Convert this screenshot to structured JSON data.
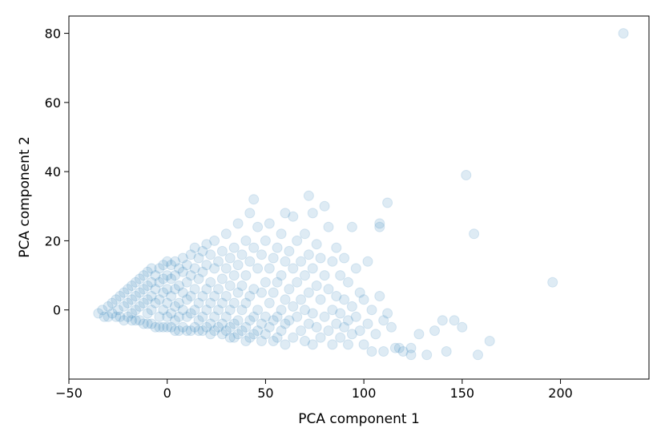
{
  "chart_data": {
    "type": "scatter",
    "title": "",
    "xlabel": "PCA component 1",
    "ylabel": "PCA component 2",
    "xlim": [
      -50,
      245
    ],
    "ylim": [
      -20,
      85
    ],
    "xticks": [
      -50,
      0,
      50,
      100,
      150,
      200
    ],
    "xtick_labels": [
      "−50",
      "0",
      "50",
      "100",
      "150",
      "200"
    ],
    "yticks": [
      0,
      20,
      40,
      60,
      80
    ],
    "ytick_labels": [
      "0",
      "20",
      "40",
      "60",
      "80"
    ],
    "grid": false,
    "legend": "none",
    "marker_color": "#1f77b4",
    "marker_alpha": 0.15,
    "series": [
      {
        "points": [
          [
            -35,
            -1
          ],
          [
            -33,
            0
          ],
          [
            -32,
            -2
          ],
          [
            -30,
            1
          ],
          [
            -30,
            -2
          ],
          [
            -28,
            2
          ],
          [
            -28,
            -1
          ],
          [
            -26,
            3
          ],
          [
            -26,
            -2
          ],
          [
            -25,
            0
          ],
          [
            -24,
            4
          ],
          [
            -24,
            -2
          ],
          [
            -22,
            5
          ],
          [
            -22,
            1
          ],
          [
            -22,
            -3
          ],
          [
            -20,
            6
          ],
          [
            -20,
            2
          ],
          [
            -20,
            -2
          ],
          [
            -18,
            7
          ],
          [
            -18,
            3
          ],
          [
            -18,
            -1
          ],
          [
            -18,
            -3
          ],
          [
            -16,
            8
          ],
          [
            -16,
            4
          ],
          [
            -16,
            0
          ],
          [
            -16,
            -3
          ],
          [
            -14,
            9
          ],
          [
            -14,
            5
          ],
          [
            -14,
            1
          ],
          [
            -14,
            -3
          ],
          [
            -12,
            10
          ],
          [
            -12,
            6
          ],
          [
            -12,
            2
          ],
          [
            -12,
            -4
          ],
          [
            -10,
            11
          ],
          [
            -10,
            7
          ],
          [
            -10,
            3
          ],
          [
            -10,
            -1
          ],
          [
            -10,
            -4
          ],
          [
            -8,
            12
          ],
          [
            -8,
            8
          ],
          [
            -8,
            4
          ],
          [
            -8,
            0
          ],
          [
            -8,
            -4
          ],
          [
            -6,
            10
          ],
          [
            -6,
            6
          ],
          [
            -6,
            2
          ],
          [
            -6,
            -5
          ],
          [
            -4,
            12
          ],
          [
            -4,
            8
          ],
          [
            -4,
            3
          ],
          [
            -4,
            -2
          ],
          [
            -4,
            -5
          ],
          [
            -2,
            13
          ],
          [
            -2,
            9
          ],
          [
            -2,
            5
          ],
          [
            -2,
            0
          ],
          [
            -2,
            -5
          ],
          [
            0,
            14
          ],
          [
            0,
            10
          ],
          [
            0,
            6
          ],
          [
            0,
            2
          ],
          [
            0,
            -2
          ],
          [
            0,
            -5
          ],
          [
            2,
            13
          ],
          [
            2,
            9
          ],
          [
            2,
            4
          ],
          [
            2,
            -1
          ],
          [
            2,
            -5
          ],
          [
            4,
            14
          ],
          [
            4,
            10
          ],
          [
            4,
            6
          ],
          [
            4,
            1
          ],
          [
            4,
            -3
          ],
          [
            4,
            -6
          ],
          [
            6,
            12
          ],
          [
            6,
            7
          ],
          [
            6,
            2
          ],
          [
            6,
            -2
          ],
          [
            6,
            -6
          ],
          [
            8,
            15
          ],
          [
            8,
            11
          ],
          [
            8,
            5
          ],
          [
            8,
            0
          ],
          [
            8,
            -5
          ],
          [
            10,
            13
          ],
          [
            10,
            8
          ],
          [
            10,
            3
          ],
          [
            10,
            -2
          ],
          [
            10,
            -6
          ],
          [
            12,
            16
          ],
          [
            12,
            10
          ],
          [
            12,
            4
          ],
          [
            12,
            -1
          ],
          [
            12,
            -6
          ],
          [
            14,
            18
          ],
          [
            14,
            12
          ],
          [
            14,
            6
          ],
          [
            14,
            0
          ],
          [
            14,
            -5
          ],
          [
            16,
            15
          ],
          [
            16,
            9
          ],
          [
            16,
            2
          ],
          [
            16,
            -3
          ],
          [
            16,
            -6
          ],
          [
            18,
            17
          ],
          [
            18,
            11
          ],
          [
            18,
            4
          ],
          [
            18,
            -2
          ],
          [
            18,
            -6
          ],
          [
            20,
            19
          ],
          [
            20,
            13
          ],
          [
            20,
            6
          ],
          [
            20,
            0
          ],
          [
            20,
            -5
          ],
          [
            22,
            16
          ],
          [
            22,
            8
          ],
          [
            22,
            2
          ],
          [
            22,
            -4
          ],
          [
            22,
            -7
          ],
          [
            24,
            20
          ],
          [
            24,
            12
          ],
          [
            24,
            4
          ],
          [
            24,
            -2
          ],
          [
            24,
            -6
          ],
          [
            26,
            14
          ],
          [
            26,
            6
          ],
          [
            26,
            0
          ],
          [
            26,
            -5
          ],
          [
            28,
            17
          ],
          [
            28,
            9
          ],
          [
            28,
            2
          ],
          [
            28,
            -4
          ],
          [
            28,
            -7
          ],
          [
            30,
            22
          ],
          [
            30,
            12
          ],
          [
            30,
            4
          ],
          [
            30,
            -2
          ],
          [
            30,
            -6
          ],
          [
            32,
            15
          ],
          [
            32,
            7
          ],
          [
            32,
            0
          ],
          [
            32,
            -5
          ],
          [
            32,
            -8
          ],
          [
            34,
            18
          ],
          [
            34,
            10
          ],
          [
            34,
            2
          ],
          [
            34,
            -4
          ],
          [
            34,
            -8
          ],
          [
            36,
            25
          ],
          [
            36,
            13
          ],
          [
            36,
            5
          ],
          [
            36,
            -3
          ],
          [
            36,
            -7
          ],
          [
            38,
            16
          ],
          [
            38,
            7
          ],
          [
            38,
            0
          ],
          [
            38,
            -6
          ],
          [
            40,
            20
          ],
          [
            40,
            10
          ],
          [
            40,
            2
          ],
          [
            40,
            -5
          ],
          [
            40,
            -9
          ],
          [
            42,
            28
          ],
          [
            42,
            14
          ],
          [
            42,
            4
          ],
          [
            42,
            -3
          ],
          [
            42,
            -8
          ],
          [
            44,
            32
          ],
          [
            44,
            18
          ],
          [
            44,
            6
          ],
          [
            44,
            -2
          ],
          [
            44,
            -7
          ],
          [
            46,
            24
          ],
          [
            46,
            12
          ],
          [
            46,
            0
          ],
          [
            46,
            -6
          ],
          [
            48,
            16
          ],
          [
            48,
            5
          ],
          [
            48,
            -4
          ],
          [
            48,
            -9
          ],
          [
            50,
            20
          ],
          [
            50,
            8
          ],
          [
            50,
            -2
          ],
          [
            50,
            -7
          ],
          [
            52,
            25
          ],
          [
            52,
            12
          ],
          [
            52,
            2
          ],
          [
            52,
            -5
          ],
          [
            54,
            15
          ],
          [
            54,
            5
          ],
          [
            54,
            -3
          ],
          [
            54,
            -9
          ],
          [
            56,
            18
          ],
          [
            56,
            8
          ],
          [
            56,
            -2
          ],
          [
            56,
            -8
          ],
          [
            58,
            22
          ],
          [
            58,
            10
          ],
          [
            58,
            0
          ],
          [
            58,
            -6
          ],
          [
            60,
            28
          ],
          [
            60,
            14
          ],
          [
            60,
            3
          ],
          [
            60,
            -4
          ],
          [
            60,
            -10
          ],
          [
            62,
            17
          ],
          [
            62,
            6
          ],
          [
            62,
            -3
          ],
          [
            64,
            27
          ],
          [
            64,
            12
          ],
          [
            64,
            1
          ],
          [
            64,
            -8
          ],
          [
            66,
            20
          ],
          [
            66,
            8
          ],
          [
            66,
            -2
          ],
          [
            68,
            14
          ],
          [
            68,
            3
          ],
          [
            68,
            -6
          ],
          [
            70,
            22
          ],
          [
            70,
            10
          ],
          [
            70,
            0
          ],
          [
            70,
            -9
          ],
          [
            72,
            33
          ],
          [
            72,
            16
          ],
          [
            72,
            5
          ],
          [
            72,
            -4
          ],
          [
            74,
            28
          ],
          [
            74,
            12
          ],
          [
            74,
            -1
          ],
          [
            74,
            -10
          ],
          [
            76,
            19
          ],
          [
            76,
            7
          ],
          [
            76,
            -5
          ],
          [
            78,
            15
          ],
          [
            78,
            3
          ],
          [
            78,
            -8
          ],
          [
            80,
            30
          ],
          [
            80,
            10
          ],
          [
            80,
            -2
          ],
          [
            82,
            24
          ],
          [
            82,
            6
          ],
          [
            82,
            -6
          ],
          [
            84,
            14
          ],
          [
            84,
            0
          ],
          [
            84,
            -10
          ],
          [
            86,
            18
          ],
          [
            86,
            4
          ],
          [
            86,
            -4
          ],
          [
            88,
            10
          ],
          [
            88,
            -1
          ],
          [
            88,
            -8
          ],
          [
            90,
            15
          ],
          [
            90,
            3
          ],
          [
            90,
            -5
          ],
          [
            92,
            8
          ],
          [
            92,
            -3
          ],
          [
            92,
            -10
          ],
          [
            94,
            24
          ],
          [
            94,
            1
          ],
          [
            94,
            -7
          ],
          [
            96,
            12
          ],
          [
            96,
            -2
          ],
          [
            98,
            5
          ],
          [
            98,
            -6
          ],
          [
            100,
            3
          ],
          [
            100,
            -10
          ],
          [
            102,
            14
          ],
          [
            102,
            -4
          ],
          [
            104,
            0
          ],
          [
            104,
            -12
          ],
          [
            106,
            -7
          ],
          [
            108,
            4
          ],
          [
            108,
            25
          ],
          [
            108,
            24
          ],
          [
            110,
            -3
          ],
          [
            110,
            -12
          ],
          [
            112,
            31
          ],
          [
            112,
            -1
          ],
          [
            114,
            -5
          ],
          [
            116,
            -11
          ],
          [
            118,
            -11
          ],
          [
            120,
            -12
          ],
          [
            124,
            -11
          ],
          [
            124,
            -13
          ],
          [
            128,
            -7
          ],
          [
            132,
            -13
          ],
          [
            136,
            -6
          ],
          [
            140,
            -3
          ],
          [
            142,
            -12
          ],
          [
            146,
            -3
          ],
          [
            150,
            -5
          ],
          [
            152,
            39
          ],
          [
            156,
            22
          ],
          [
            158,
            -13
          ],
          [
            164,
            -9
          ],
          [
            196,
            8
          ],
          [
            232,
            80
          ]
        ]
      }
    ]
  }
}
